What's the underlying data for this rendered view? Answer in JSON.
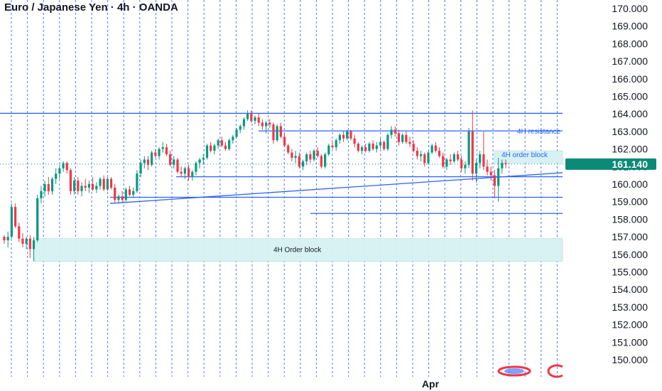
{
  "symbol_title": "Euro / Japanese Yen · 4h · OANDA",
  "price_badge": "161.140",
  "x_label": "Apr",
  "colors": {
    "up": "#089981",
    "down": "#f23645",
    "drawing": "#2962ff",
    "zone_fill": "#d6f2f4",
    "grid_vertical": "#2962ff",
    "badge": "#0b8a78"
  },
  "chart_data": {
    "type": "candlestick",
    "title": "Euro / Japanese Yen · 4h · OANDA",
    "ylim": [
      149.5,
      170.3
    ],
    "y_axis_side": "right",
    "y_ticks": [
      "170.000",
      "169.000",
      "168.000",
      "167.000",
      "166.000",
      "165.000",
      "164.000",
      "163.000",
      "162.000",
      "161.000",
      "160.000",
      "159.000",
      "158.000",
      "157.000",
      "156.000",
      "155.000",
      "154.000",
      "153.000",
      "152.000",
      "151.000",
      "150.000"
    ],
    "x_ticks": [
      "Apr"
    ],
    "last_price": 161.14,
    "candles": [
      [
        157.0,
        157.1,
        156.6,
        156.8
      ],
      [
        156.8,
        157.3,
        156.4,
        157.0
      ],
      [
        157.0,
        158.9,
        156.9,
        158.7
      ],
      [
        158.7,
        158.9,
        157.5,
        157.6
      ],
      [
        157.6,
        157.8,
        156.7,
        156.9
      ],
      [
        156.9,
        157.2,
        156.4,
        156.6
      ],
      [
        156.6,
        157.0,
        156.3,
        156.9
      ],
      [
        156.9,
        157.1,
        155.8,
        156.3
      ],
      [
        156.3,
        157.0,
        155.6,
        156.8
      ],
      [
        156.8,
        159.4,
        156.7,
        159.2
      ],
      [
        159.2,
        159.9,
        158.9,
        159.6
      ],
      [
        159.6,
        160.2,
        159.3,
        160.0
      ],
      [
        160.0,
        160.4,
        159.4,
        159.6
      ],
      [
        159.6,
        160.4,
        159.4,
        160.3
      ],
      [
        160.3,
        160.9,
        160.0,
        160.6
      ],
      [
        160.6,
        161.1,
        160.3,
        160.9
      ],
      [
        160.9,
        161.3,
        160.7,
        161.2
      ],
      [
        161.2,
        161.3,
        160.6,
        160.8
      ],
      [
        160.8,
        160.9,
        159.4,
        159.6
      ],
      [
        159.6,
        160.4,
        159.4,
        160.2
      ],
      [
        160.2,
        160.4,
        159.4,
        159.6
      ],
      [
        159.6,
        160.1,
        159.3,
        159.9
      ],
      [
        159.9,
        160.3,
        159.6,
        159.8
      ],
      [
        159.8,
        160.2,
        159.5,
        160.0
      ],
      [
        160.0,
        160.4,
        159.6,
        159.7
      ],
      [
        159.7,
        160.1,
        159.5,
        159.9
      ],
      [
        159.9,
        160.4,
        159.7,
        160.3
      ],
      [
        160.3,
        160.5,
        159.6,
        159.7
      ],
      [
        159.7,
        160.4,
        159.6,
        160.3
      ],
      [
        160.3,
        160.4,
        159.7,
        159.8
      ],
      [
        159.8,
        160.0,
        158.9,
        159.1
      ],
      [
        159.1,
        159.4,
        158.9,
        159.3
      ],
      [
        159.3,
        159.6,
        158.9,
        159.1
      ],
      [
        159.1,
        159.8,
        159.0,
        159.7
      ],
      [
        159.7,
        159.9,
        159.3,
        159.4
      ],
      [
        159.4,
        159.8,
        159.2,
        159.6
      ],
      [
        159.6,
        160.8,
        159.5,
        160.6
      ],
      [
        160.6,
        161.4,
        160.4,
        161.2
      ],
      [
        161.2,
        161.6,
        160.9,
        161.4
      ],
      [
        161.4,
        161.6,
        160.8,
        161.1
      ],
      [
        161.1,
        161.9,
        161.0,
        161.8
      ],
      [
        161.8,
        162.0,
        161.5,
        161.6
      ],
      [
        161.6,
        162.1,
        161.4,
        162.0
      ],
      [
        162.0,
        162.4,
        161.8,
        162.1
      ],
      [
        162.1,
        162.3,
        161.6,
        161.7
      ],
      [
        161.7,
        161.9,
        161.0,
        161.1
      ],
      [
        161.1,
        161.6,
        160.9,
        161.4
      ],
      [
        161.4,
        161.5,
        160.6,
        160.7
      ],
      [
        160.7,
        161.0,
        160.4,
        160.6
      ],
      [
        160.6,
        161.0,
        160.3,
        160.9
      ],
      [
        160.9,
        161.1,
        160.2,
        160.4
      ],
      [
        160.4,
        160.8,
        160.2,
        160.7
      ],
      [
        160.7,
        161.3,
        160.5,
        161.2
      ],
      [
        161.2,
        161.5,
        160.9,
        161.4
      ],
      [
        161.4,
        161.7,
        161.1,
        161.5
      ],
      [
        161.5,
        162.3,
        161.4,
        162.2
      ],
      [
        162.2,
        162.4,
        161.8,
        161.9
      ],
      [
        161.9,
        162.3,
        161.7,
        162.2
      ],
      [
        162.2,
        162.6,
        162.0,
        162.5
      ],
      [
        162.5,
        162.7,
        162.1,
        162.2
      ],
      [
        162.2,
        162.4,
        161.9,
        162.0
      ],
      [
        162.0,
        162.6,
        161.9,
        162.5
      ],
      [
        162.5,
        162.8,
        162.3,
        162.7
      ],
      [
        162.7,
        163.2,
        162.6,
        163.1
      ],
      [
        163.1,
        163.4,
        162.9,
        163.3
      ],
      [
        163.3,
        163.8,
        163.1,
        163.7
      ],
      [
        163.7,
        164.2,
        163.6,
        164.0
      ],
      [
        164.0,
        164.2,
        163.5,
        163.6
      ],
      [
        163.6,
        163.9,
        163.4,
        163.8
      ],
      [
        163.8,
        164.0,
        163.3,
        163.5
      ],
      [
        163.5,
        163.7,
        163.1,
        163.3
      ],
      [
        163.3,
        163.6,
        162.9,
        163.5
      ],
      [
        163.5,
        163.7,
        163.2,
        163.4
      ],
      [
        163.4,
        163.5,
        162.3,
        162.5
      ],
      [
        162.5,
        163.4,
        162.4,
        163.3
      ],
      [
        163.3,
        163.5,
        162.6,
        162.7
      ],
      [
        162.7,
        162.9,
        162.1,
        162.2
      ],
      [
        162.2,
        162.3,
        161.7,
        161.8
      ],
      [
        161.8,
        162.0,
        161.3,
        161.5
      ],
      [
        161.5,
        161.9,
        161.2,
        161.6
      ],
      [
        161.6,
        161.8,
        160.9,
        161.0
      ],
      [
        161.0,
        161.4,
        160.8,
        161.3
      ],
      [
        161.3,
        161.8,
        161.1,
        161.7
      ],
      [
        161.7,
        161.9,
        161.2,
        161.4
      ],
      [
        161.4,
        162.0,
        161.3,
        161.9
      ],
      [
        161.9,
        162.1,
        161.5,
        161.6
      ],
      [
        161.6,
        161.7,
        160.9,
        161.0
      ],
      [
        161.0,
        161.8,
        160.9,
        161.7
      ],
      [
        161.7,
        162.3,
        161.6,
        162.2
      ],
      [
        162.2,
        162.5,
        162.0,
        162.1
      ],
      [
        162.1,
        162.6,
        161.9,
        162.5
      ],
      [
        162.5,
        162.9,
        162.3,
        162.8
      ],
      [
        162.8,
        163.0,
        162.4,
        162.6
      ],
      [
        162.6,
        163.1,
        162.5,
        163.0
      ],
      [
        163.0,
        163.1,
        162.5,
        162.6
      ],
      [
        162.6,
        162.8,
        162.1,
        162.3
      ],
      [
        162.3,
        162.4,
        161.8,
        161.9
      ],
      [
        161.9,
        162.2,
        161.7,
        162.1
      ],
      [
        162.1,
        162.3,
        161.8,
        161.9
      ],
      [
        161.9,
        162.4,
        161.8,
        162.3
      ],
      [
        162.3,
        162.5,
        161.9,
        162.0
      ],
      [
        162.0,
        162.4,
        161.8,
        162.2
      ],
      [
        162.2,
        162.6,
        162.0,
        162.4
      ],
      [
        162.4,
        162.5,
        161.9,
        162.0
      ],
      [
        162.0,
        162.9,
        161.9,
        162.8
      ],
      [
        162.8,
        163.3,
        162.6,
        163.1
      ],
      [
        163.1,
        163.3,
        162.7,
        162.9
      ],
      [
        162.9,
        163.1,
        162.2,
        162.4
      ],
      [
        162.4,
        162.9,
        162.3,
        162.8
      ],
      [
        162.8,
        163.0,
        162.3,
        162.4
      ],
      [
        162.4,
        162.7,
        162.1,
        162.3
      ],
      [
        162.3,
        162.5,
        161.8,
        161.9
      ],
      [
        161.9,
        162.1,
        161.4,
        161.6
      ],
      [
        161.6,
        161.9,
        161.3,
        161.7
      ],
      [
        161.7,
        161.8,
        161.0,
        161.2
      ],
      [
        161.2,
        161.9,
        161.1,
        161.8
      ],
      [
        161.8,
        162.3,
        161.7,
        162.2
      ],
      [
        162.2,
        162.4,
        161.8,
        161.9
      ],
      [
        161.9,
        162.1,
        161.5,
        161.6
      ],
      [
        161.6,
        161.8,
        160.9,
        161.0
      ],
      [
        161.0,
        161.5,
        160.8,
        161.4
      ],
      [
        161.4,
        161.7,
        161.1,
        161.3
      ],
      [
        161.3,
        161.8,
        161.2,
        161.7
      ],
      [
        161.7,
        161.9,
        161.3,
        161.4
      ],
      [
        161.4,
        161.6,
        160.7,
        160.9
      ],
      [
        160.9,
        161.3,
        160.6,
        161.1
      ],
      [
        161.1,
        163.2,
        160.9,
        163.0
      ],
      [
        163.0,
        164.2,
        160.2,
        160.6
      ],
      [
        160.6,
        161.4,
        160.1,
        161.2
      ],
      [
        161.2,
        161.9,
        160.9,
        161.7
      ],
      [
        161.7,
        163.0,
        160.8,
        161.0
      ],
      [
        161.0,
        161.4,
        160.5,
        160.7
      ],
      [
        160.7,
        161.0,
        160.2,
        160.5
      ],
      [
        160.5,
        160.8,
        159.2,
        159.9
      ],
      [
        159.9,
        161.5,
        159.0,
        160.9
      ],
      [
        160.9,
        161.4,
        160.6,
        161.2
      ],
      [
        161.2,
        161.4,
        160.9,
        161.14
      ]
    ],
    "drawings": [
      {
        "type": "horizontal_line",
        "price": 164.03,
        "label": ""
      },
      {
        "type": "horizontal_line",
        "price": 163.03,
        "label": "4H resistance"
      },
      {
        "type": "horizontal_line",
        "price": 160.42,
        "label": ""
      },
      {
        "type": "horizontal_line",
        "price": 159.25,
        "label": ""
      },
      {
        "type": "horizontal_line",
        "price": 158.33,
        "label": ""
      },
      {
        "type": "trendline",
        "from_price": 158.9,
        "to_price": 160.65,
        "label": ""
      },
      {
        "type": "zone",
        "price_top": 156.9,
        "price_bottom": 155.6,
        "label": "4H Order block"
      },
      {
        "type": "zone",
        "price_top": 161.9,
        "price_bottom": 161.2,
        "label": "4H order block"
      }
    ]
  }
}
